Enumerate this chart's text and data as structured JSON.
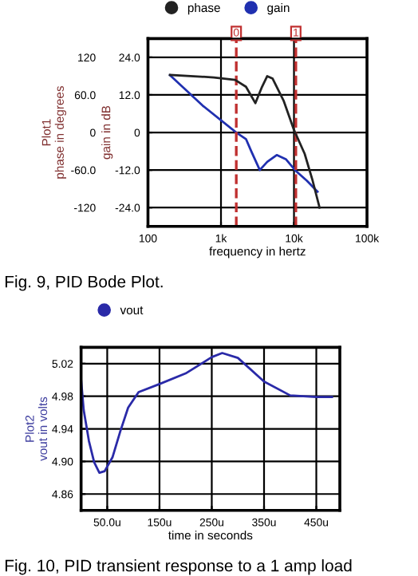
{
  "chart_data": [
    {
      "type": "line",
      "xlabel": "frequency in hertz",
      "ylabel": "gain in dB",
      "y2label": "Plot1\nphase in degrees",
      "log": "x",
      "grid": true,
      "legend": "top",
      "marker": "none",
      "line_style": "solid",
      "xlim": [
        100,
        100000
      ],
      "xticks": [
        100,
        {
          "value": 1000,
          "label": "1k"
        },
        {
          "value": 10000,
          "label": "10k"
        },
        {
          "value": 100000,
          "label": "100k"
        }
      ],
      "ylim": [
        -30,
        30
      ],
      "yticks": [
        {
          "value": -24,
          "label": "-24.0"
        },
        {
          "value": -12,
          "label": "-12.0"
        },
        0,
        {
          "value": 12,
          "label": "12.0"
        },
        {
          "value": 24,
          "label": "24.0"
        }
      ],
      "y2lim": [
        -150,
        150
      ],
      "y2ticks": [
        -120,
        {
          "value": -60,
          "label": "-60.0"
        },
        0,
        {
          "value": 60,
          "label": "60.0"
        },
        120
      ],
      "series": [
        {
          "name": "phase",
          "color": "#222222",
          "axis": "y2",
          "x": [
            200,
            800,
            1560,
            2200,
            2960,
            3650,
            4300,
            5100,
            7200,
            10000,
            14000,
            18000,
            22400
          ],
          "values": [
            92,
            88,
            84,
            73,
            47,
            73,
            90,
            86,
            51,
            4,
            -34,
            -77,
            -120
          ]
        },
        {
          "name": "gain",
          "color": "#2030b0",
          "x": [
            200,
            560,
            1620,
            2200,
            2600,
            3400,
            4300,
            5800,
            7800,
            10600,
            15000,
            21000
          ],
          "values": [
            18.3,
            8.6,
            0,
            -2.1,
            -6,
            -12,
            -9.4,
            -7.2,
            -8.6,
            -12.3,
            -15.4,
            -18.9
          ]
        }
      ],
      "ref_lines": [
        {
          "axis": "x",
          "value": 1620,
          "color": "#c03030",
          "line_style": "dashed"
        },
        {
          "axis": "x",
          "value": 10600,
          "color": "#c03030",
          "line_style": "dashed"
        }
      ],
      "annotations": [
        "Fig. 9, PID Bode Plot.",
        {
          "text": "0",
          "x": 1620,
          "y": 30
        },
        {
          "text": "1",
          "x": 10600,
          "y": 30
        }
      ]
    },
    {
      "type": "line",
      "xlabel": "time in seconds",
      "ylabel": "Plot2\nvout in volts",
      "grid": true,
      "legend": "top left",
      "marker": "none",
      "line_style": "solid",
      "xlim": [
        0,
        495
      ],
      "xticks": [
        {
          "value": 50,
          "label": "50.0u"
        },
        {
          "value": 150,
          "label": "150u"
        },
        {
          "value": 250,
          "label": "250u"
        },
        {
          "value": 350,
          "label": "350u"
        },
        {
          "value": 450,
          "label": "450u"
        }
      ],
      "ylim": [
        4.84,
        5.04
      ],
      "yticks": [
        4.86,
        {
          "value": 4.9,
          "label": "4.90"
        },
        4.94,
        4.98,
        5.02
      ],
      "series": [
        {
          "name": "vout",
          "color": "#2a2aa8",
          "x": [
            0,
            5,
            15,
            25,
            35,
            45,
            60,
            75,
            90,
            110,
            150,
            200,
            250,
            270,
            300,
            350,
            400,
            450,
            480
          ],
          "values": [
            5.0,
            4.963,
            4.925,
            4.899,
            4.886,
            4.888,
            4.905,
            4.937,
            4.966,
            4.985,
            4.995,
            5.008,
            5.028,
            5.033,
            5.027,
            4.998,
            4.981,
            4.979,
            4.979
          ]
        }
      ],
      "annotations": [
        "Fig. 10, PID transient response to a 1 amp load"
      ]
    }
  ]
}
